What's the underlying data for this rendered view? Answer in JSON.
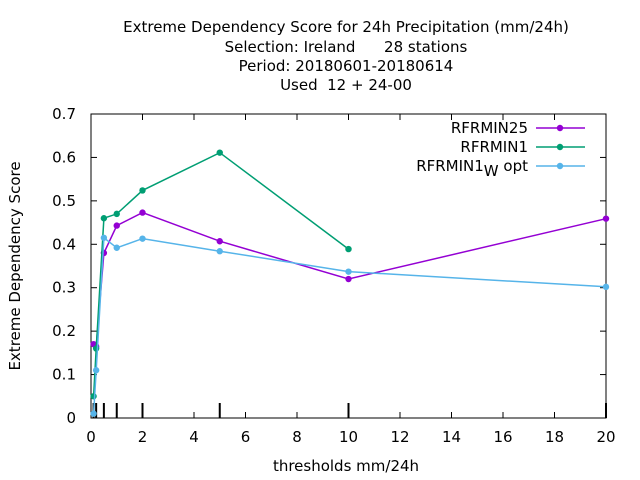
{
  "chart_data": {
    "type": "line",
    "title_lines": [
      "Extreme Dependency Score  for 24h Precipitation (mm/24h)",
      "Selection: Ireland      28 stations",
      "Period: 20180601-20180614",
      "Used  12 + 24-00"
    ],
    "xlabel": "thresholds mm/24h",
    "ylabel": "Extreme Dependency Score",
    "xlim": [
      0,
      20
    ],
    "ylim": [
      0,
      0.7
    ],
    "x_ticks": [
      0,
      2,
      4,
      6,
      8,
      10,
      12,
      14,
      16,
      18,
      20
    ],
    "y_ticks": [
      0,
      0.1,
      0.2,
      0.3,
      0.4,
      0.5,
      0.6,
      0.7
    ],
    "x_tick_labels": [
      "0",
      "2",
      "4",
      "6",
      "8",
      "10",
      "12",
      "14",
      "16",
      "18",
      "20"
    ],
    "y_tick_labels": [
      "0",
      "0.1",
      "0.2",
      "0.3",
      "0.4",
      "0.5",
      "0.6",
      "0.7"
    ],
    "threshold_marks": [
      0.1,
      0.2,
      0.5,
      1,
      2,
      5,
      10,
      20
    ],
    "legend_position": "top-right",
    "series": [
      {
        "name": "RFRMIN25",
        "color": "#9400d3",
        "points": [
          [
            0.1,
            0.17
          ],
          [
            0.2,
            0.165
          ],
          [
            0.5,
            0.38
          ],
          [
            1,
            0.443
          ],
          [
            2,
            0.473
          ],
          [
            5,
            0.407
          ],
          [
            10,
            0.32
          ],
          [
            20,
            0.459
          ]
        ]
      },
      {
        "name": "RFRMIN1",
        "color": "#009e73",
        "points": [
          [
            0.1,
            0.05
          ],
          [
            0.2,
            0.16
          ],
          [
            0.5,
            0.46
          ],
          [
            1,
            0.47
          ],
          [
            2,
            0.524
          ],
          [
            5,
            0.611
          ],
          [
            10,
            0.389
          ]
        ]
      },
      {
        "name": "RFRMIN1",
        "name_subscript": "W",
        "name_suffix": " opt",
        "color": "#56b4e9",
        "points": [
          [
            0.1,
            0.01
          ],
          [
            0.2,
            0.11
          ],
          [
            0.5,
            0.415
          ],
          [
            1,
            0.392
          ],
          [
            2,
            0.413
          ],
          [
            5,
            0.384
          ],
          [
            10,
            0.337
          ],
          [
            20,
            0.302
          ]
        ]
      }
    ]
  }
}
